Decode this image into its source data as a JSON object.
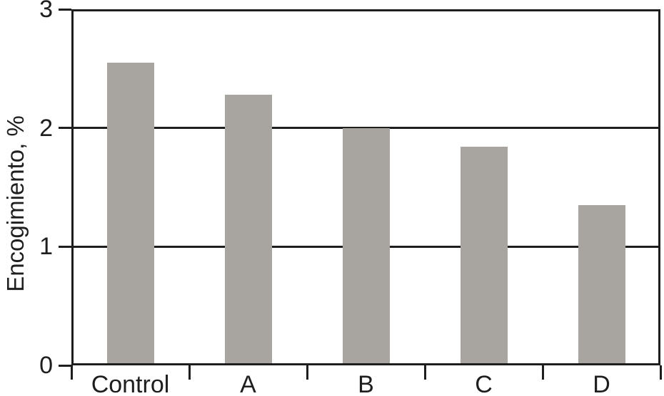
{
  "chart_data": {
    "type": "bar",
    "title": "",
    "ylabel": "Encogimiento, %",
    "xlabel": "",
    "categories": [
      "Control",
      "A",
      "B",
      "C",
      "D"
    ],
    "values": [
      2.55,
      2.28,
      2.0,
      1.84,
      1.35
    ],
    "ylim": [
      0,
      3
    ],
    "yticks": [
      0,
      1,
      2,
      3
    ],
    "ytick_labels": [
      "0",
      "1",
      "2",
      "3"
    ],
    "grid": "horizontal gridlines at interior y-ticks",
    "legend": "none",
    "bar_color": "#a8a5a1",
    "axis_color": "#1e1e1e",
    "background_color": "#ffffff"
  }
}
